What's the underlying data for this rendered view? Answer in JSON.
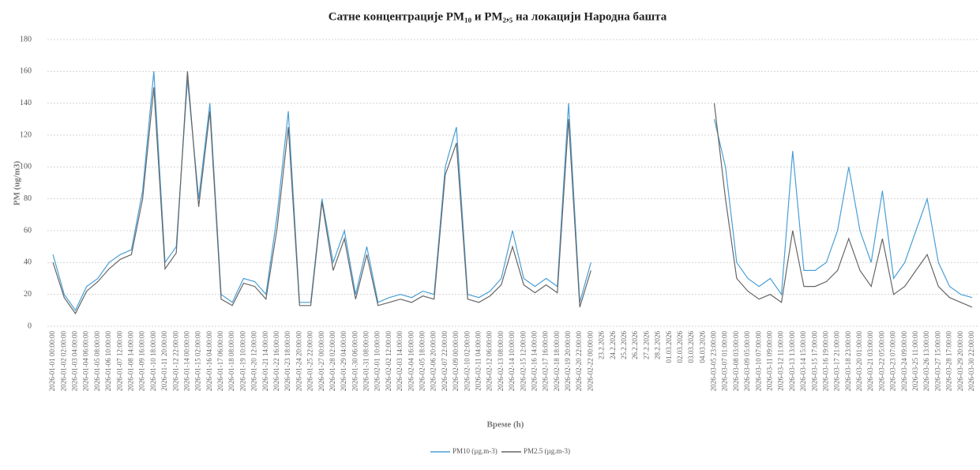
{
  "chart_data": {
    "type": "line",
    "title": "Сатне концентрације PM₁₀ и PM₂,₅ на локацији Народна башта",
    "x_label": "Време (h)",
    "y_label": "PM (ug/m3)",
    "categories": [
      "2026-01-01 00:00:00",
      "2026-01-02 02:00:00",
      "2026-01-03 04:00:00",
      "2026-01-04 06:00:00",
      "2026-01-05 08:00:00",
      "2026-01-06 10:00:00",
      "2026-01-07 12:00:00",
      "2026-01-08 14:00:00",
      "2026-01-09 16:00:00",
      "2026-01-10 18:00:00",
      "2026-01-11 20:00:00",
      "2026-01-12 22:00:00",
      "2026-01-14 00:00:00",
      "2026-01-15 02:00:00",
      "2026-01-16 04:00:00",
      "2026-01-17 06:00:00",
      "2026-01-18 08:00:00",
      "2026-01-19 10:00:00",
      "2026-01-20 12:00:00",
      "2026-01-21 14:00:00",
      "2026-01-22 16:00:00",
      "2026-01-23 18:00:00",
      "2026-01-24 20:00:00",
      "2026-01-25 22:00:00",
      "2026-01-27 00:00:00",
      "2026-01-28 02:00:00",
      "2026-01-29 04:00:00",
      "2026-01-30 06:00:00",
      "2026-01-31 08:00:00",
      "2026-02-01 10:00:00",
      "2026-02-02 12:00:00",
      "2026-02-03 14:00:00",
      "2026-02-04 16:00:00",
      "2026-02-05 18:00:00",
      "2026-02-06 20:00:00",
      "2026-02-07 22:00:00",
      "2026-02-09 00:00:00",
      "2026-02-10 02:00:00",
      "2026-02-11 04:00:00",
      "2026-02-12 06:00:00",
      "2026-02-13 08:00:00",
      "2026-02-14 10:00:00",
      "2026-02-15 12:00:00",
      "2026-02-16 14:00:00",
      "2026-02-17 16:00:00",
      "2026-02-18 18:00:00",
      "2026-02-19 20:00:00",
      "2026-02-20 22:00:00",
      "2026-02-22 00:00:00",
      "23.2.2026",
      "24.2.2026",
      "25.2.2026",
      "26.2.2026",
      "27.2.2026",
      "28.2.2026",
      "01.03.2026",
      "02.03.2026",
      "03.03.2026",
      "04.03.2026",
      "2026-03-05 23:00:00",
      "2026-03-07 01:00:00",
      "2026-03-08 03:00:00",
      "2026-03-09 05:00:00",
      "2026-03-10 07:00:00",
      "2026-03-11 09:00:00",
      "2026-03-12 11:00:00",
      "2026-03-13 13:00:00",
      "2026-03-14 15:00:00",
      "2026-03-15 17:00:00",
      "2026-03-16 19:00:00",
      "2026-03-17 21:00:00",
      "2026-03-18 23:00:00",
      "2026-03-20 01:00:00",
      "2026-03-21 03:00:00",
      "2026-03-22 05:00:00",
      "2026-03-23 07:00:00",
      "2026-03-24 09:00:00",
      "2026-03-25 11:00:00",
      "2026-03-26 13:00:00",
      "2026-03-27 15:00:00",
      "2026-03-28 17:00:00",
      "2026-03-29 20:00:00",
      "2026-03-30 22:00:00"
    ],
    "series": [
      {
        "name": "PM10 (µg.m-3)",
        "color": "#4a9fd6",
        "values": [
          45,
          20,
          10,
          25,
          30,
          40,
          45,
          48,
          85,
          160,
          40,
          50,
          155,
          80,
          140,
          20,
          15,
          30,
          28,
          20,
          70,
          135,
          15,
          15,
          80,
          40,
          60,
          20,
          50,
          15,
          18,
          20,
          18,
          22,
          20,
          100,
          125,
          20,
          18,
          22,
          30,
          60,
          30,
          25,
          30,
          25,
          140,
          15,
          40,
          null,
          null,
          null,
          null,
          null,
          null,
          null,
          null,
          null,
          null,
          130,
          100,
          40,
          30,
          25,
          30,
          20,
          110,
          35,
          35,
          40,
          60,
          100,
          60,
          40,
          85,
          30,
          40,
          60,
          80,
          40,
          25,
          20,
          18
        ]
      },
      {
        "name": "PM2.5 (µg.m-3)",
        "color": "#666666",
        "values": [
          40,
          18,
          8,
          22,
          28,
          36,
          42,
          45,
          80,
          150,
          36,
          46,
          160,
          75,
          135,
          17,
          13,
          27,
          25,
          17,
          62,
          125,
          13,
          13,
          78,
          35,
          55,
          17,
          45,
          13,
          15,
          17,
          15,
          19,
          17,
          95,
          115,
          17,
          15,
          19,
          26,
          50,
          26,
          21,
          26,
          21,
          130,
          12,
          35,
          null,
          null,
          null,
          null,
          null,
          null,
          null,
          null,
          null,
          null,
          140,
          80,
          30,
          22,
          17,
          20,
          15,
          60,
          25,
          25,
          28,
          35,
          55,
          35,
          25,
          55,
          20,
          25,
          35,
          45,
          25,
          18,
          15,
          12
        ]
      }
    ],
    "ylim": [
      0,
      180
    ],
    "yticks": [
      0,
      20,
      40,
      60,
      80,
      100,
      120,
      140,
      160,
      180
    ],
    "grid": true,
    "legend": "bottom"
  }
}
